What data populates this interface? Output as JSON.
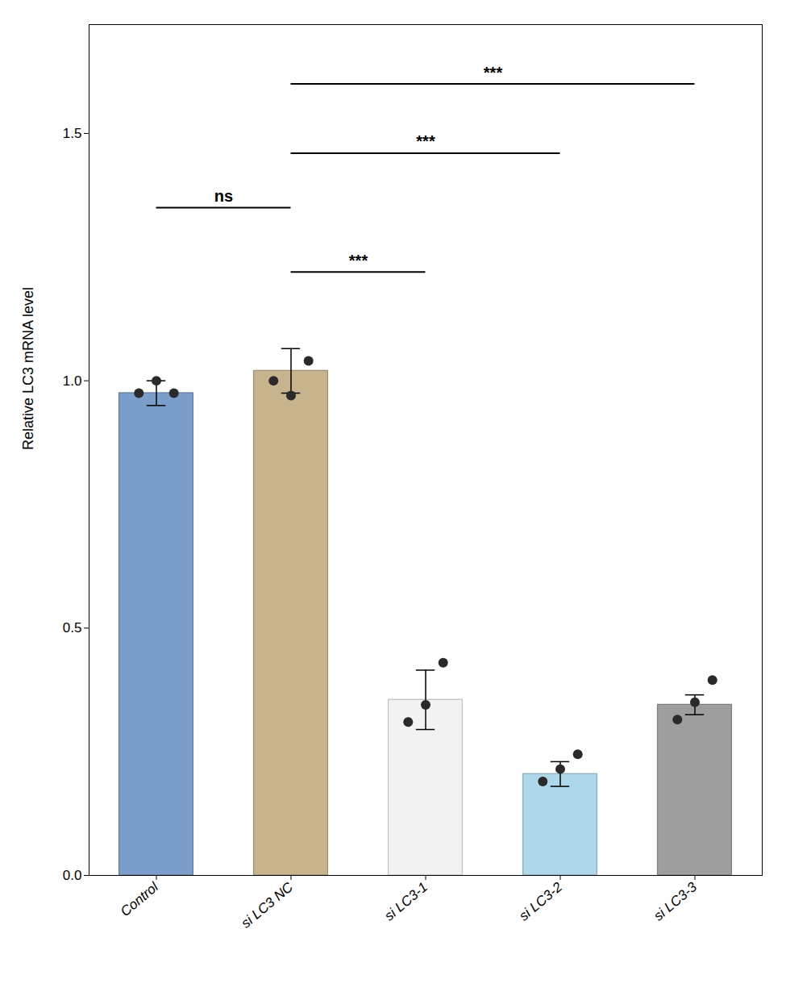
{
  "chart_data": {
    "type": "bar",
    "categories": [
      "Control",
      "si LC3 NC",
      "si LC3-1",
      "si LC3-2",
      "si LC3-3"
    ],
    "values": [
      0.975,
      1.02,
      0.355,
      0.205,
      0.345
    ],
    "errors": [
      0.025,
      0.045,
      0.06,
      0.025,
      0.02
    ],
    "colors": [
      "#7B9FCA",
      "#C8B48C",
      "#F2F2F2",
      "#AED8EA",
      "#9E9E9E"
    ],
    "points": {
      "color": "#2a2a2a",
      "values": [
        [
          0.975,
          1.0,
          0.975
        ],
        [
          1.0,
          0.97,
          1.04
        ],
        [
          0.31,
          0.345,
          0.43
        ],
        [
          0.19,
          0.215,
          0.245
        ],
        [
          0.315,
          0.35,
          0.395
        ]
      ]
    },
    "ylabel": "Relative LC3 mRNA level",
    "ylim": [
      0.0,
      1.72
    ],
    "yticks": [
      {
        "value": 0.0,
        "label": "0.0"
      },
      0.5,
      {
        "value": 1.0,
        "label": "1.0"
      },
      1.5
    ],
    "annotations": [
      {
        "x1": "Control",
        "x2": "si LC3 NC",
        "y": 1.35,
        "text": "ns"
      },
      {
        "x1": "si LC3 NC",
        "x2": "si LC3-1",
        "y": 1.22,
        "text": "***"
      },
      {
        "x1": "si LC3 NC",
        "x2": "si LC3-2",
        "y": 1.46,
        "text": "***"
      },
      {
        "x1": "si LC3 NC",
        "x2": "si LC3-3",
        "y": 1.6,
        "text": "***"
      }
    ],
    "grid": false
  }
}
